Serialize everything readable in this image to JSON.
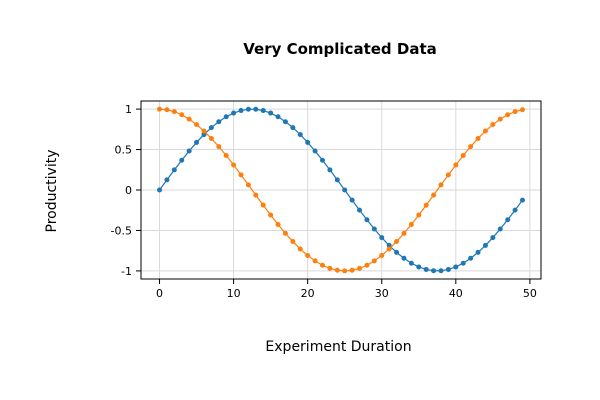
{
  "chart_data": {
    "type": "line",
    "title": "Very Complicated Data",
    "xlabel": "Experiment Duration",
    "ylabel": "Productivity",
    "x": [
      0,
      1,
      2,
      3,
      4,
      5,
      6,
      7,
      8,
      9,
      10,
      11,
      12,
      13,
      14,
      15,
      16,
      17,
      18,
      19,
      20,
      21,
      22,
      23,
      24,
      25,
      26,
      27,
      28,
      29,
      30,
      31,
      32,
      33,
      34,
      35,
      36,
      37,
      38,
      39,
      40,
      41,
      42,
      43,
      44,
      45,
      46,
      47,
      48,
      49
    ],
    "series": [
      {
        "color": "#1f77b4",
        "values": [
          0,
          0.125,
          0.249,
          0.368,
          0.482,
          0.588,
          0.685,
          0.771,
          0.844,
          0.905,
          0.951,
          0.982,
          0.998,
          0.998,
          0.982,
          0.951,
          0.905,
          0.844,
          0.771,
          0.685,
          0.588,
          0.482,
          0.368,
          0.249,
          0.125,
          0,
          -0.125,
          -0.249,
          -0.368,
          -0.482,
          -0.588,
          -0.685,
          -0.771,
          -0.844,
          -0.905,
          -0.951,
          -0.982,
          -0.998,
          -0.998,
          -0.982,
          -0.951,
          -0.905,
          -0.844,
          -0.771,
          -0.685,
          -0.588,
          -0.482,
          -0.368,
          -0.249,
          -0.125
        ]
      },
      {
        "color": "#ff7f0e",
        "values": [
          1,
          0.992,
          0.969,
          0.93,
          0.876,
          0.809,
          0.729,
          0.637,
          0.536,
          0.426,
          0.309,
          0.187,
          0.063,
          -0.063,
          -0.187,
          -0.309,
          -0.426,
          -0.536,
          -0.637,
          -0.729,
          -0.809,
          -0.876,
          -0.93,
          -0.969,
          -0.992,
          -1,
          -0.992,
          -0.969,
          -0.93,
          -0.876,
          -0.809,
          -0.729,
          -0.637,
          -0.536,
          -0.426,
          -0.309,
          -0.187,
          -0.063,
          0.063,
          0.187,
          0.309,
          0.426,
          0.536,
          0.637,
          0.729,
          0.809,
          0.876,
          0.93,
          0.969,
          0.992
        ]
      }
    ],
    "xticks": [
      "0",
      "10",
      "20",
      "30",
      "40",
      "50"
    ],
    "yticks": [
      "1",
      "0.5",
      "0",
      "-0.5",
      "-1"
    ],
    "xlim": [
      -2.5,
      51.5
    ],
    "ylim": [
      -1.1,
      1.1
    ],
    "grid": true,
    "markers": true
  }
}
